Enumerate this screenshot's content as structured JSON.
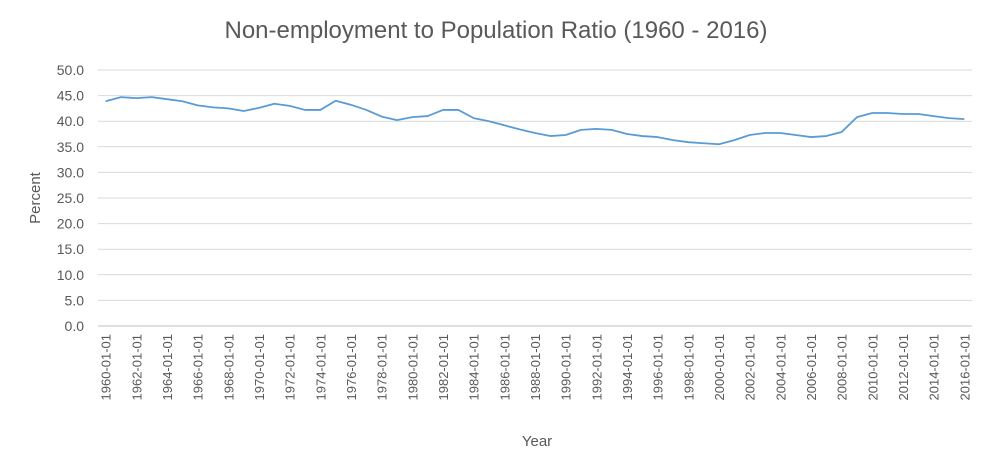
{
  "chart_data": {
    "type": "line",
    "title": "Non-employment to Population Ratio (1960 - 2016)",
    "xlabel": "Year",
    "ylabel": "Percent",
    "ylim": [
      0,
      50
    ],
    "yticks": [
      "0.0",
      "5.0",
      "10.0",
      "15.0",
      "20.0",
      "25.0",
      "30.0",
      "35.0",
      "40.0",
      "45.0",
      "50.0"
    ],
    "grid": true,
    "legend": "none",
    "x": [
      "1960-01-01",
      "1961-01-01",
      "1962-01-01",
      "1963-01-01",
      "1964-01-01",
      "1965-01-01",
      "1966-01-01",
      "1967-01-01",
      "1968-01-01",
      "1969-01-01",
      "1970-01-01",
      "1971-01-01",
      "1972-01-01",
      "1973-01-01",
      "1974-01-01",
      "1975-01-01",
      "1976-01-01",
      "1977-01-01",
      "1978-01-01",
      "1979-01-01",
      "1980-01-01",
      "1981-01-01",
      "1982-01-01",
      "1983-01-01",
      "1984-01-01",
      "1985-01-01",
      "1986-01-01",
      "1987-01-01",
      "1988-01-01",
      "1989-01-01",
      "1990-01-01",
      "1991-01-01",
      "1992-01-01",
      "1993-01-01",
      "1994-01-01",
      "1995-01-01",
      "1996-01-01",
      "1997-01-01",
      "1998-01-01",
      "1999-01-01",
      "2000-01-01",
      "2001-01-01",
      "2002-01-01",
      "2003-01-01",
      "2004-01-01",
      "2005-01-01",
      "2006-01-01",
      "2007-01-01",
      "2008-01-01",
      "2009-01-01",
      "2010-01-01",
      "2011-01-01",
      "2012-01-01",
      "2013-01-01",
      "2014-01-01",
      "2015-01-01",
      "2016-01-01"
    ],
    "xticks": [
      "1960-01-01",
      "1962-01-01",
      "1964-01-01",
      "1966-01-01",
      "1968-01-01",
      "1970-01-01",
      "1972-01-01",
      "1974-01-01",
      "1976-01-01",
      "1978-01-01",
      "1980-01-01",
      "1982-01-01",
      "1984-01-01",
      "1986-01-01",
      "1988-01-01",
      "1990-01-01",
      "1992-01-01",
      "1994-01-01",
      "1996-01-01",
      "1998-01-01",
      "2000-01-01",
      "2002-01-01",
      "2004-01-01",
      "2006-01-01",
      "2008-01-01",
      "2010-01-01",
      "2012-01-01",
      "2014-01-01",
      "2016-01-01"
    ],
    "series": [
      {
        "color": "#5b9bd5",
        "values": [
          43.9,
          44.7,
          44.5,
          44.7,
          44.3,
          43.9,
          43.1,
          42.7,
          42.5,
          42.0,
          42.6,
          43.4,
          43.0,
          42.2,
          42.2,
          44.0,
          43.2,
          42.2,
          40.9,
          40.2,
          40.8,
          41.0,
          42.2,
          42.2,
          40.6,
          40.0,
          39.2,
          38.4,
          37.7,
          37.1,
          37.3,
          38.3,
          38.5,
          38.3,
          37.5,
          37.1,
          36.9,
          36.3,
          35.9,
          35.7,
          35.5,
          36.3,
          37.3,
          37.7,
          37.7,
          37.3,
          36.9,
          37.1,
          37.9,
          40.8,
          41.6,
          41.6,
          41.4,
          41.4,
          41.0,
          40.6,
          40.4
        ]
      }
    ]
  }
}
